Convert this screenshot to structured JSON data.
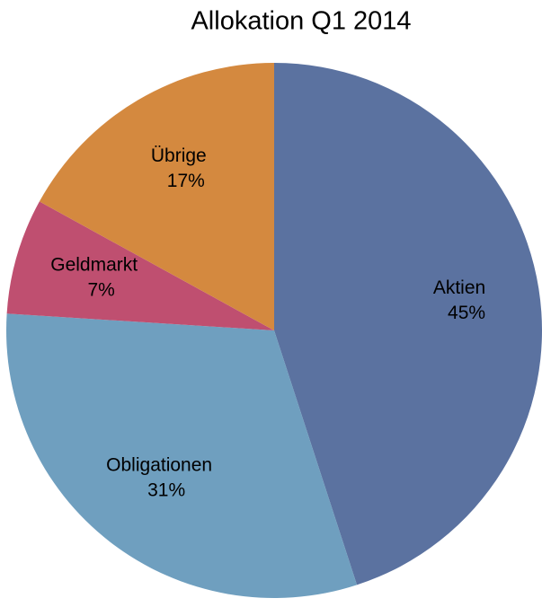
{
  "chart_data": {
    "type": "pie",
    "title": "Allokation Q1 2014",
    "categories": [
      "Aktien",
      "Obligationen",
      "Geldmarkt",
      "Übrige"
    ],
    "values": [
      45,
      31,
      7,
      17
    ],
    "value_labels": [
      "45%",
      "31%",
      "7%",
      "17%"
    ],
    "colors": [
      "#5b72a0",
      "#6f9fbf",
      "#bf4f70",
      "#d4893f"
    ]
  }
}
